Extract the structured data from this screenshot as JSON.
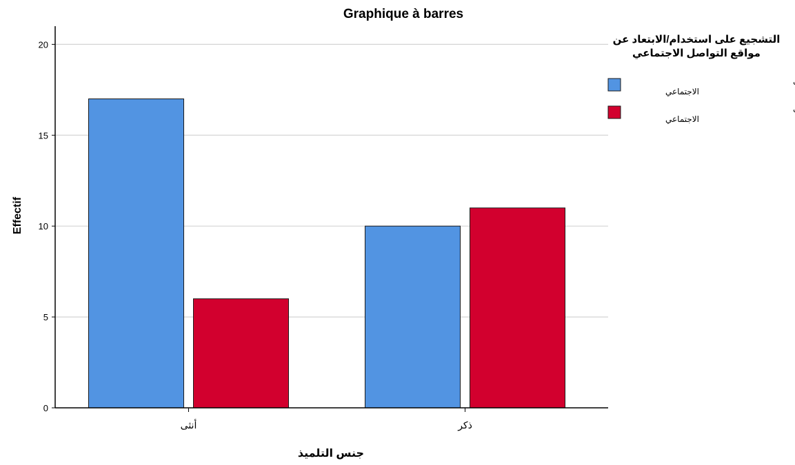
{
  "chart_data": {
    "type": "bar",
    "title": "Graphique à barres",
    "xlabel": "جنس التلميذ",
    "ylabel": "Effectif",
    "categories": [
      "أنثى",
      "ذكر"
    ],
    "series": [
      {
        "name": "التشجيع على استخدام مواقع التواصل الاجتماعي",
        "color": "#5294e2",
        "values": [
          17,
          10
        ]
      },
      {
        "name": "التشجيع على الابتعاد عن مواقع التواصل الاجتماعي",
        "color": "#d2002e",
        "values": [
          6,
          11
        ]
      }
    ],
    "ylim": [
      0,
      21
    ],
    "yticks": [
      0,
      5,
      10,
      15,
      20
    ],
    "grid": true,
    "legend": {
      "title": "التشجيع على استخدام/الابتعاد عن مواقع التواصل الاجتماعي",
      "placement": "top-right"
    }
  }
}
